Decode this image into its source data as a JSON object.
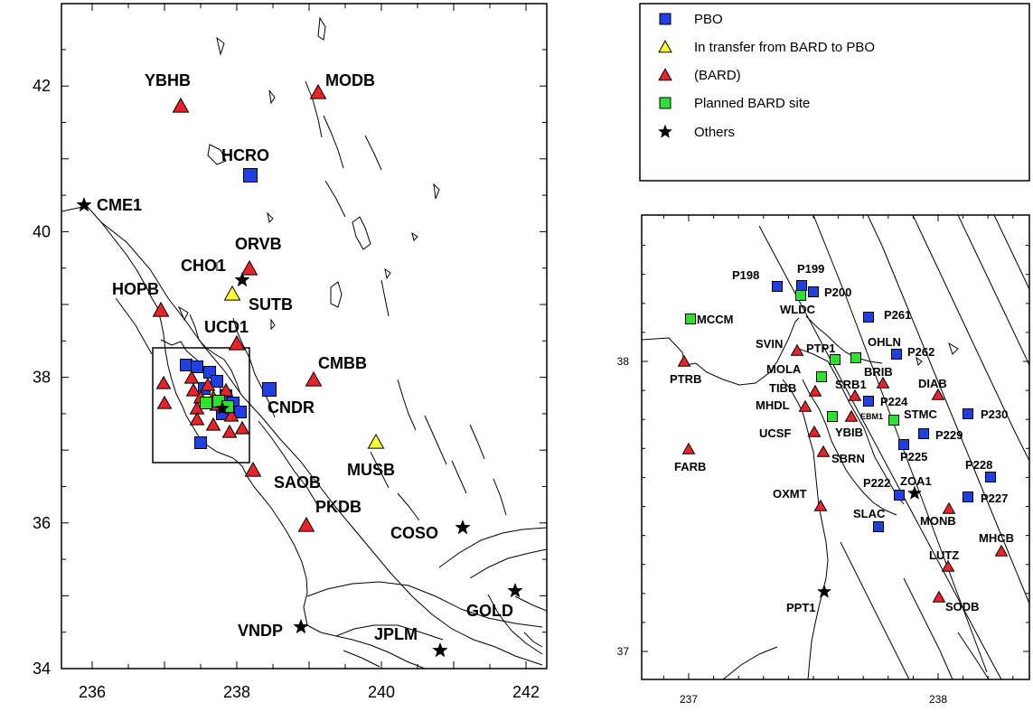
{
  "legend": {
    "items": [
      {
        "marker": "blue-square",
        "label": "PBO"
      },
      {
        "marker": "yellow-triangle",
        "label": "In transfer from BARD to PBO"
      },
      {
        "marker": "red-triangle",
        "label": "(BARD)"
      },
      {
        "marker": "green-square",
        "label": "Planned BARD site"
      },
      {
        "marker": "star",
        "label": "Others"
      }
    ]
  },
  "colors": {
    "blue": "#1f3fe0",
    "yellow": "#ffff33",
    "red": "#e8232a",
    "green": "#2fe02f",
    "black": "#000000"
  },
  "main_map": {
    "x_ticks": [
      "236",
      "238",
      "240",
      "242"
    ],
    "y_ticks": [
      "34",
      "36",
      "38",
      "40",
      "42"
    ],
    "stations": [
      {
        "name": "YBHB",
        "type": "red-triangle"
      },
      {
        "name": "MODB",
        "type": "red-triangle"
      },
      {
        "name": "HCRO",
        "type": "blue-square"
      },
      {
        "name": "CME1",
        "type": "star"
      },
      {
        "name": "ORVB",
        "type": "red-triangle"
      },
      {
        "name": "CHO1",
        "type": "star"
      },
      {
        "name": "SUTB",
        "type": "yellow-triangle"
      },
      {
        "name": "HOPB",
        "type": "red-triangle"
      },
      {
        "name": "UCD1",
        "type": "red-triangle"
      },
      {
        "name": "CMBB",
        "type": "red-triangle"
      },
      {
        "name": "CNDR",
        "type": "blue-square"
      },
      {
        "name": "MUSB",
        "type": "yellow-triangle"
      },
      {
        "name": "SAOB",
        "type": "red-triangle"
      },
      {
        "name": "PKDB",
        "type": "red-triangle"
      },
      {
        "name": "COSO",
        "type": "star"
      },
      {
        "name": "GOLD",
        "type": "star"
      },
      {
        "name": "VNDP",
        "type": "star"
      },
      {
        "name": "JPLM",
        "type": "star"
      }
    ]
  },
  "inset_map": {
    "x_ticks": [
      "237",
      "238"
    ],
    "y_ticks": [
      "37",
      "38"
    ],
    "stations": [
      {
        "name": "P198",
        "type": "blue-square"
      },
      {
        "name": "P199",
        "type": "blue-square"
      },
      {
        "name": "P200",
        "type": "blue-square"
      },
      {
        "name": "WLDC",
        "type": "green-square"
      },
      {
        "name": "MCCM",
        "type": "green-square"
      },
      {
        "name": "P261",
        "type": "blue-square"
      },
      {
        "name": "SVIN",
        "type": "red-triangle"
      },
      {
        "name": "PTP1",
        "type": "green-square"
      },
      {
        "name": "OHLN",
        "type": "green-square"
      },
      {
        "name": "P262",
        "type": "blue-square"
      },
      {
        "name": "PTRB",
        "type": "red-triangle"
      },
      {
        "name": "MOLA",
        "type": "green-square"
      },
      {
        "name": "BRIB",
        "type": "red-triangle"
      },
      {
        "name": "TIBB",
        "type": "red-triangle"
      },
      {
        "name": "SRB1",
        "type": "red-triangle"
      },
      {
        "name": "DIAB",
        "type": "red-triangle"
      },
      {
        "name": "MHDL",
        "type": "red-triangle"
      },
      {
        "name": "P224",
        "type": "blue-square"
      },
      {
        "name": "EBM1",
        "type": "red-triangle"
      },
      {
        "name": "STMC",
        "type": "green-square"
      },
      {
        "name": "P230",
        "type": "blue-square"
      },
      {
        "name": "YBIB",
        "type": "green-square"
      },
      {
        "name": "UCSF",
        "type": "red-triangle"
      },
      {
        "name": "P229",
        "type": "blue-square"
      },
      {
        "name": "SBRN",
        "type": "red-triangle"
      },
      {
        "name": "P225",
        "type": "blue-square"
      },
      {
        "name": "FARB",
        "type": "red-triangle"
      },
      {
        "name": "P228",
        "type": "blue-square"
      },
      {
        "name": "ZOA1",
        "type": "star"
      },
      {
        "name": "P222",
        "type": "blue-square"
      },
      {
        "name": "OXMT",
        "type": "red-triangle"
      },
      {
        "name": "P227",
        "type": "blue-square"
      },
      {
        "name": "SLAC",
        "type": "blue-square"
      },
      {
        "name": "MONB",
        "type": "red-triangle"
      },
      {
        "name": "MHCB",
        "type": "red-triangle"
      },
      {
        "name": "LUTZ",
        "type": "red-triangle"
      },
      {
        "name": "PPT1",
        "type": "star"
      },
      {
        "name": "SODB",
        "type": "red-triangle"
      }
    ]
  }
}
